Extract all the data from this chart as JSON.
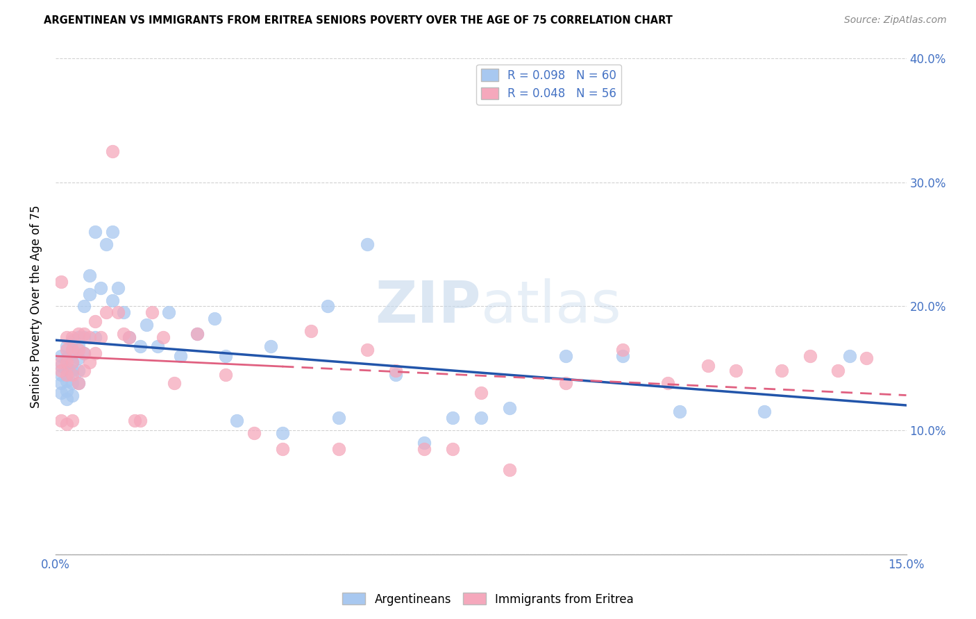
{
  "title": "ARGENTINEAN VS IMMIGRANTS FROM ERITREA SENIORS POVERTY OVER THE AGE OF 75 CORRELATION CHART",
  "source": "Source: ZipAtlas.com",
  "ylabel": "Seniors Poverty Over the Age of 75",
  "xlim": [
    0,
    0.15
  ],
  "ylim": [
    0,
    0.4
  ],
  "blue_R": 0.098,
  "blue_N": 60,
  "pink_R": 0.048,
  "pink_N": 56,
  "blue_color": "#A8C8F0",
  "pink_color": "#F5A8BC",
  "blue_line_color": "#2255AA",
  "pink_line_color": "#E06080",
  "watermark_color": "#C5D8EC",
  "blue_x": [
    0.001,
    0.001,
    0.001,
    0.001,
    0.001,
    0.002,
    0.002,
    0.002,
    0.002,
    0.002,
    0.002,
    0.003,
    0.003,
    0.003,
    0.003,
    0.003,
    0.003,
    0.004,
    0.004,
    0.004,
    0.004,
    0.004,
    0.005,
    0.005,
    0.005,
    0.006,
    0.006,
    0.007,
    0.007,
    0.008,
    0.009,
    0.01,
    0.01,
    0.011,
    0.012,
    0.013,
    0.015,
    0.016,
    0.018,
    0.02,
    0.022,
    0.025,
    0.028,
    0.03,
    0.032,
    0.038,
    0.04,
    0.048,
    0.05,
    0.055,
    0.06,
    0.065,
    0.07,
    0.075,
    0.08,
    0.09,
    0.1,
    0.11,
    0.125,
    0.14
  ],
  "blue_y": [
    0.16,
    0.152,
    0.145,
    0.138,
    0.13,
    0.168,
    0.158,
    0.15,
    0.14,
    0.132,
    0.125,
    0.172,
    0.162,
    0.155,
    0.148,
    0.138,
    0.128,
    0.175,
    0.168,
    0.158,
    0.148,
    0.138,
    0.2,
    0.175,
    0.162,
    0.225,
    0.21,
    0.26,
    0.175,
    0.215,
    0.25,
    0.205,
    0.26,
    0.215,
    0.195,
    0.175,
    0.168,
    0.185,
    0.168,
    0.195,
    0.16,
    0.178,
    0.19,
    0.16,
    0.108,
    0.168,
    0.098,
    0.2,
    0.11,
    0.25,
    0.145,
    0.09,
    0.11,
    0.11,
    0.118,
    0.16,
    0.16,
    0.115,
    0.115,
    0.16
  ],
  "pink_x": [
    0.001,
    0.001,
    0.001,
    0.001,
    0.002,
    0.002,
    0.002,
    0.002,
    0.002,
    0.003,
    0.003,
    0.003,
    0.003,
    0.003,
    0.004,
    0.004,
    0.004,
    0.005,
    0.005,
    0.005,
    0.006,
    0.006,
    0.007,
    0.007,
    0.008,
    0.009,
    0.01,
    0.011,
    0.012,
    0.013,
    0.014,
    0.015,
    0.017,
    0.019,
    0.021,
    0.025,
    0.03,
    0.035,
    0.04,
    0.045,
    0.05,
    0.055,
    0.06,
    0.065,
    0.07,
    0.075,
    0.08,
    0.09,
    0.1,
    0.108,
    0.115,
    0.12,
    0.128,
    0.133,
    0.138,
    0.143
  ],
  "pink_y": [
    0.22,
    0.155,
    0.148,
    0.108,
    0.175,
    0.165,
    0.155,
    0.145,
    0.105,
    0.175,
    0.165,
    0.155,
    0.145,
    0.108,
    0.178,
    0.165,
    0.138,
    0.178,
    0.162,
    0.148,
    0.175,
    0.155,
    0.188,
    0.162,
    0.175,
    0.195,
    0.325,
    0.195,
    0.178,
    0.175,
    0.108,
    0.108,
    0.195,
    0.175,
    0.138,
    0.178,
    0.145,
    0.098,
    0.085,
    0.18,
    0.085,
    0.165,
    0.148,
    0.085,
    0.085,
    0.13,
    0.068,
    0.138,
    0.165,
    0.138,
    0.152,
    0.148,
    0.148,
    0.16,
    0.148,
    0.158
  ]
}
